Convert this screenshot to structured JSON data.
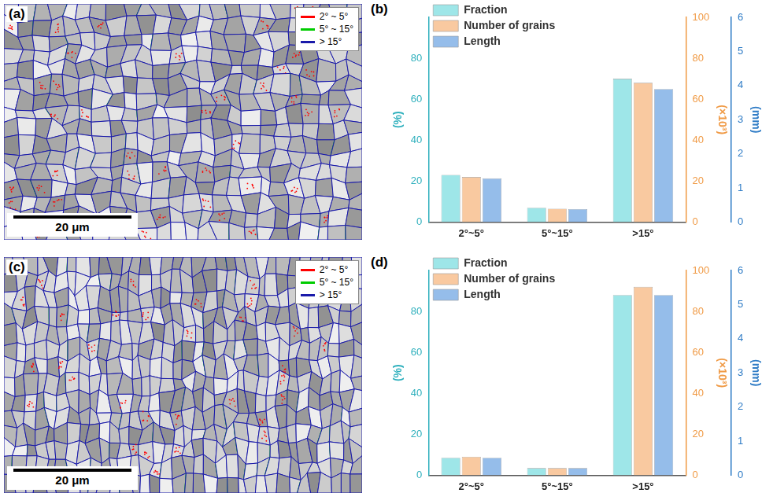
{
  "images": [
    {
      "label": "(a)",
      "legend": [
        {
          "name": "2° ~ 5°",
          "color": "#ff0000"
        },
        {
          "name": "5° ~ 15°",
          "color": "#00cc00"
        },
        {
          "name": "> 15°",
          "color": "#1a1aaa"
        }
      ],
      "scale_bar": "20 μm"
    },
    {
      "label": "(c)",
      "legend": [
        {
          "name": "2° ~ 5°",
          "color": "#ff0000"
        },
        {
          "name": "5° ~ 15°",
          "color": "#00cc00"
        },
        {
          "name": "> 15°",
          "color": "#1a1aaa"
        }
      ],
      "scale_bar": "20 μm"
    }
  ],
  "chart_data": [
    {
      "panel": "(b)",
      "type": "bar",
      "categories": [
        "2°~5°",
        "5°~15°",
        ">15°"
      ],
      "series": [
        {
          "name": "Fraction",
          "color": "#9ee6e8",
          "values": [
            23,
            7,
            70
          ],
          "axis": "y"
        },
        {
          "name": "Number of grains",
          "color": "#f9c9a0",
          "values": [
            22,
            6.5,
            68
          ],
          "axis": "y2"
        },
        {
          "name": "Length",
          "color": "#95bdea",
          "values": [
            1.28,
            0.38,
            3.9
          ],
          "axis": "y3"
        }
      ],
      "ylabel": "(%)",
      "ylim": [
        0,
        100
      ],
      "yticks": [
        0,
        20,
        40,
        60,
        80
      ],
      "y2label": "(×10³)",
      "y2lim": [
        0,
        100
      ],
      "y2ticks": [
        0,
        20,
        40,
        60,
        80,
        100
      ],
      "y3label": "(mm)",
      "y3lim": [
        0,
        6
      ],
      "y3ticks": [
        0,
        1,
        2,
        3,
        4,
        5,
        6
      ],
      "legend": "top left",
      "grid": false
    },
    {
      "panel": "(d)",
      "type": "bar",
      "categories": [
        "2°~5°",
        "5°~15°",
        ">15°"
      ],
      "series": [
        {
          "name": "Fraction",
          "color": "#9ee6e8",
          "values": [
            8.5,
            3.5,
            88
          ],
          "axis": "y"
        },
        {
          "name": "Number of grains",
          "color": "#f9c9a0",
          "values": [
            9,
            3.5,
            92
          ],
          "axis": "y2"
        },
        {
          "name": "Length",
          "color": "#95bdea",
          "values": [
            0.51,
            0.21,
            5.28
          ],
          "axis": "y3"
        }
      ],
      "ylabel": "(%)",
      "ylim": [
        0,
        100
      ],
      "yticks": [
        0,
        20,
        40,
        60,
        80
      ],
      "y2label": "(×10³)",
      "y2lim": [
        0,
        100
      ],
      "y2ticks": [
        0,
        20,
        40,
        60,
        80,
        100
      ],
      "y3label": "(mm)",
      "y3lim": [
        0,
        6
      ],
      "y3ticks": [
        0,
        1,
        2,
        3,
        4,
        5,
        6
      ],
      "legend": "top left",
      "grid": false
    }
  ]
}
